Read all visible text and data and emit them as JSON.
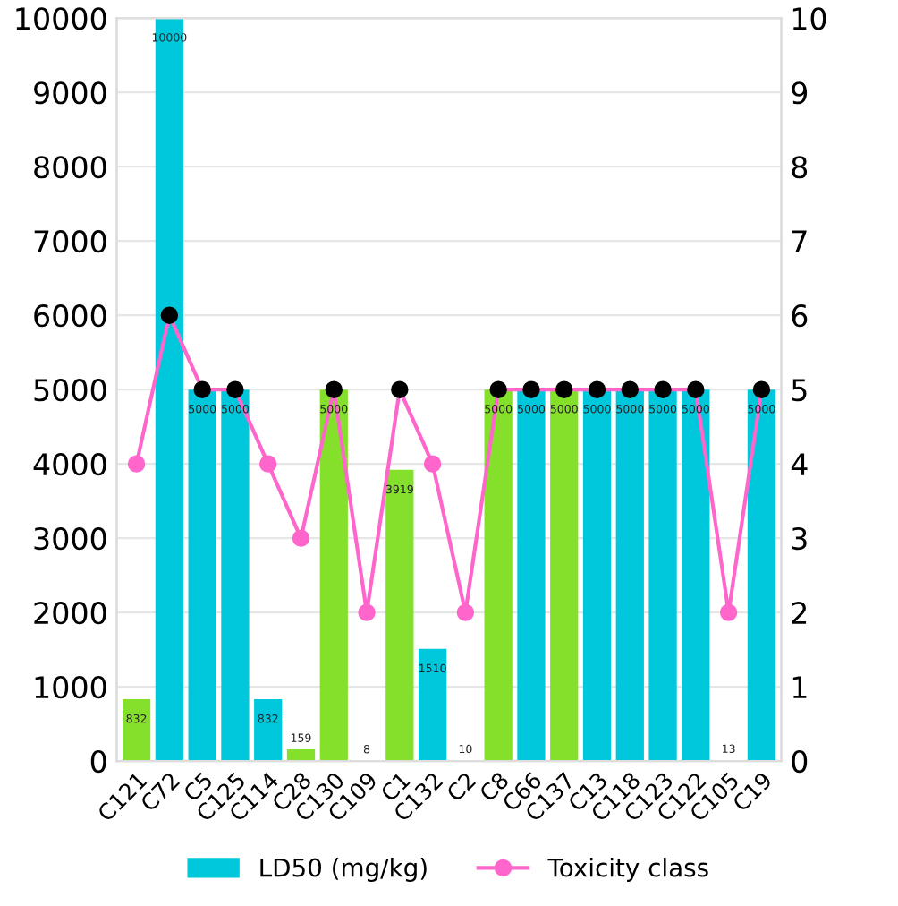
{
  "chart_data": {
    "type": "bar",
    "categories": [
      "C121",
      "C72",
      "C5",
      "C125",
      "C114",
      "C28",
      "C130",
      "C109",
      "C1",
      "C132",
      "C2",
      "C8",
      "C66",
      "C137",
      "C13",
      "C118",
      "C123",
      "C122",
      "C105",
      "C19"
    ],
    "series": [
      {
        "name": "LD50 (mg/kg)",
        "color": "#00c8dc",
        "colors": [
          "#84e02a",
          "#00c8dc",
          "#00c8dc",
          "#00c8dc",
          "#00c8dc",
          "#84e02a",
          "#84e02a",
          "#84e02a",
          "#84e02a",
          "#00c8dc",
          "#00c8dc",
          "#84e02a",
          "#00c8dc",
          "#84e02a",
          "#00c8dc",
          "#00c8dc",
          "#00c8dc",
          "#00c8dc",
          "#84e02a",
          "#00c8dc"
        ],
        "values": [
          832,
          10000,
          5000,
          5000,
          832,
          159,
          5000,
          8,
          3919,
          1510,
          10,
          5000,
          5000,
          5000,
          5000,
          5000,
          5000,
          5000,
          13,
          5000
        ],
        "value_labels": [
          "832",
          "10000",
          "5000",
          "5000",
          "832",
          "159",
          "5000",
          "8",
          "3919",
          "1510",
          "10",
          "5000",
          "5000",
          "5000",
          "5000",
          "5000",
          "5000",
          "5000",
          "13",
          "5000"
        ]
      },
      {
        "name": "Toxicity class",
        "type": "line",
        "axis": "y2",
        "color": "#ff66cc",
        "colors": [
          "#ff66cc",
          "#000000",
          "#000000",
          "#000000",
          "#ff66cc",
          "#ff66cc",
          "#000000",
          "#ff66cc",
          "#000000",
          "#ff66cc",
          "#ff66cc",
          "#000000",
          "#000000",
          "#000000",
          "#000000",
          "#000000",
          "#000000",
          "#000000",
          "#ff66cc",
          "#000000"
        ],
        "values": [
          4,
          6,
          5,
          5,
          4,
          3,
          5,
          2,
          5,
          4,
          2,
          5,
          5,
          5,
          5,
          5,
          5,
          5,
          2,
          5
        ]
      }
    ],
    "ylim": [
      0,
      10000
    ],
    "yticks": [
      0,
      1000,
      2000,
      3000,
      4000,
      5000,
      6000,
      7000,
      8000,
      9000,
      10000
    ],
    "y2lim": [
      0,
      10
    ],
    "y2ticks": [
      0,
      1,
      2,
      3,
      4,
      5,
      6,
      7,
      8,
      9,
      10
    ],
    "grid": "y",
    "legend": "bottom",
    "marker": "circle"
  }
}
